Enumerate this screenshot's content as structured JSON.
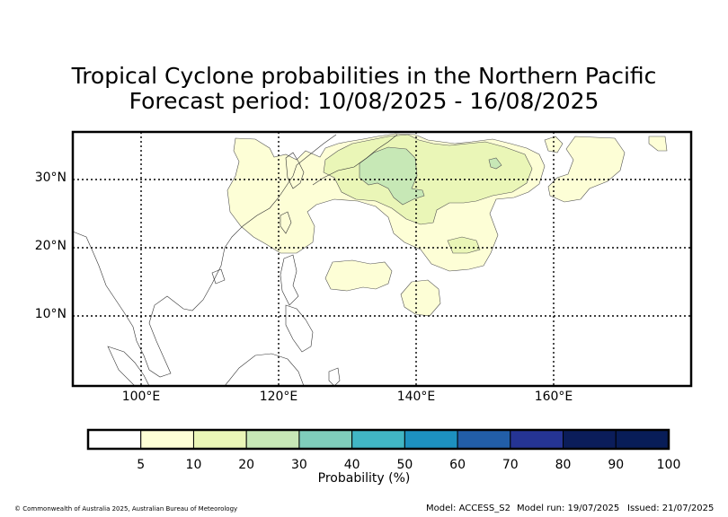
{
  "title": {
    "line1": "Tropical Cyclone probabilities in the Northern Pacific",
    "line2": "Forecast period: 10/08/2025 - 16/08/2025"
  },
  "map": {
    "lon_range": [
      90,
      180
    ],
    "lat_range": [
      0,
      37
    ],
    "lat_labels": [
      {
        "value": 30,
        "text": "30°N"
      },
      {
        "value": 20,
        "text": "20°N"
      },
      {
        "value": 10,
        "text": "10°N"
      }
    ],
    "lon_labels": [
      {
        "value": 100,
        "text": "100°E"
      },
      {
        "value": 120,
        "text": "120°E"
      },
      {
        "value": 140,
        "text": "140°E"
      },
      {
        "value": 160,
        "text": "160°E"
      }
    ],
    "gridlines": "dotted",
    "probability_regions": [
      {
        "category": "5-10",
        "color": "#fdfed6",
        "label": "Yellow sea / East China region 5-10%"
      },
      {
        "category": "10-20",
        "color": "#eaf6b7",
        "label": "South of Japan 10-20%"
      },
      {
        "category": "20-30",
        "color": "#c7e8b6",
        "label": "South of Japan 20-30%"
      }
    ]
  },
  "colorbar": {
    "colors": [
      "#ffffff",
      "#fdfed6",
      "#eaf6b7",
      "#c7e8b6",
      "#7fcdbb",
      "#41b6c4",
      "#1d91c0",
      "#225ea8",
      "#253494",
      "#0b1d5a",
      "#081d58"
    ],
    "tick_labels": [
      "5",
      "10",
      "20",
      "30",
      "40",
      "50",
      "60",
      "70",
      "80",
      "90",
      "100"
    ],
    "label": "Probability (%)"
  },
  "footer": {
    "copyright": "© Commonwealth of Australia 2025, Australian Bureau of Meteorology",
    "model": "Model: ACCESS_S2",
    "model_run": "Model run: 19/07/2025",
    "issued": "Issued: 21/07/2025"
  }
}
